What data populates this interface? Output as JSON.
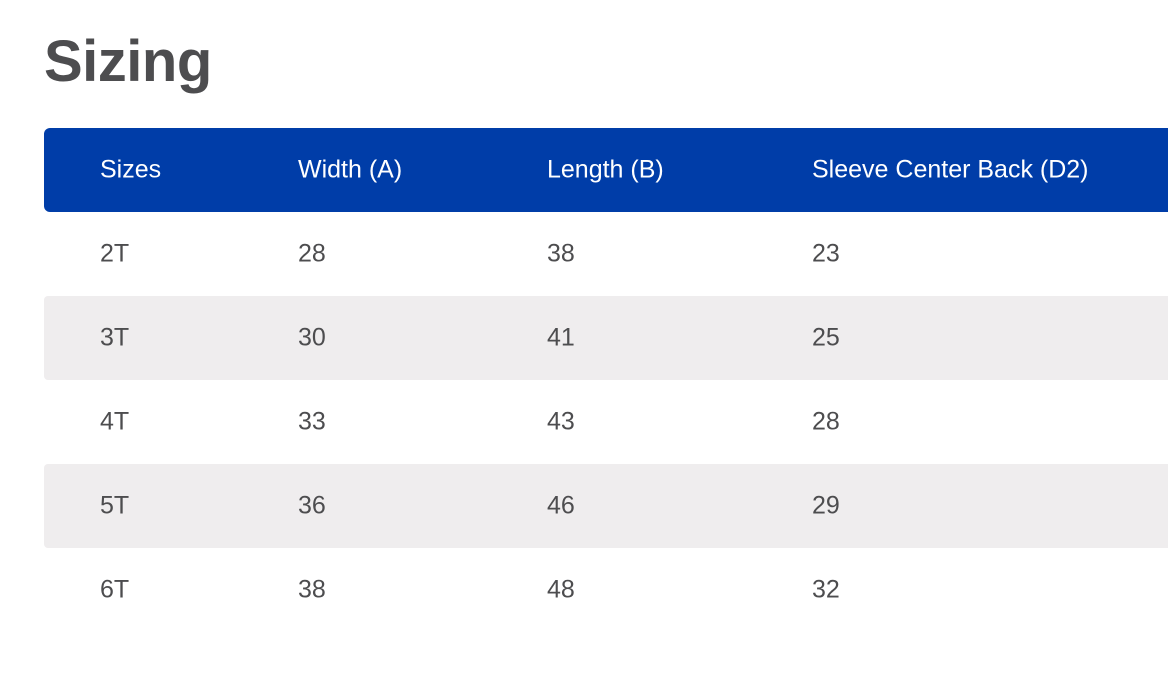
{
  "page": {
    "title": "Sizing"
  },
  "table": {
    "headers": [
      "Sizes",
      "Width (A)",
      "Length (B)",
      "Sleeve Center Back (D2)"
    ],
    "rows": [
      [
        "2T",
        "28",
        "38",
        "23"
      ],
      [
        "3T",
        "30",
        "41",
        "25"
      ],
      [
        "4T",
        "33",
        "43",
        "28"
      ],
      [
        "5T",
        "36",
        "46",
        "29"
      ],
      [
        "6T",
        "38",
        "48",
        "32"
      ]
    ]
  },
  "colors": {
    "header_background": "#003da8",
    "header_text": "#ffffff",
    "stripe_background": "#efedee",
    "body_text": "#4d4d4f"
  }
}
